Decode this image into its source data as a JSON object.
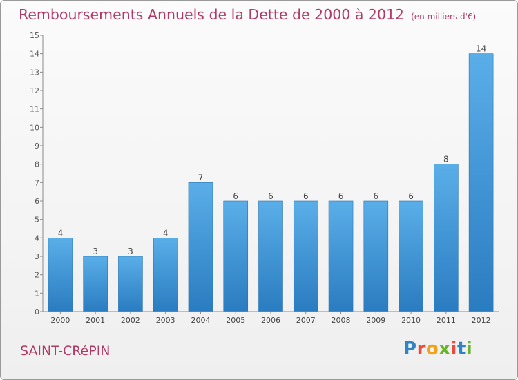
{
  "title": "Remboursements Annuels de la Dette de 2000 à 2012",
  "unit_label": "(en milliers d'€)",
  "commune": "SAINT-CRéPIN",
  "logo": {
    "text": "Proxiti",
    "colors": [
      "#2f84c6",
      "#e94b3c",
      "#f0a21a",
      "#69b42f",
      "#e94b3c",
      "#2f84c6",
      "#69b42f"
    ]
  },
  "chart_data": {
    "type": "bar",
    "title": "Remboursements Annuels de la Dette de 2000 à 2012",
    "categories": [
      "2000",
      "2001",
      "2002",
      "2003",
      "2004",
      "2005",
      "2006",
      "2007",
      "2008",
      "2009",
      "2010",
      "2011",
      "2012"
    ],
    "values": [
      4,
      3,
      3,
      4,
      7,
      6,
      6,
      6,
      6,
      6,
      6,
      8,
      14
    ],
    "data_labels": [
      "4",
      "3",
      "3",
      "4",
      "7",
      "6",
      "6",
      "6",
      "6",
      "6",
      "6",
      "8",
      "14"
    ],
    "ylim": [
      0,
      15
    ],
    "yticks": [
      0,
      1,
      2,
      3,
      4,
      5,
      6,
      7,
      8,
      9,
      10,
      11,
      12,
      13,
      14,
      15
    ],
    "grid": false,
    "bar_color": "#3d91d3"
  }
}
